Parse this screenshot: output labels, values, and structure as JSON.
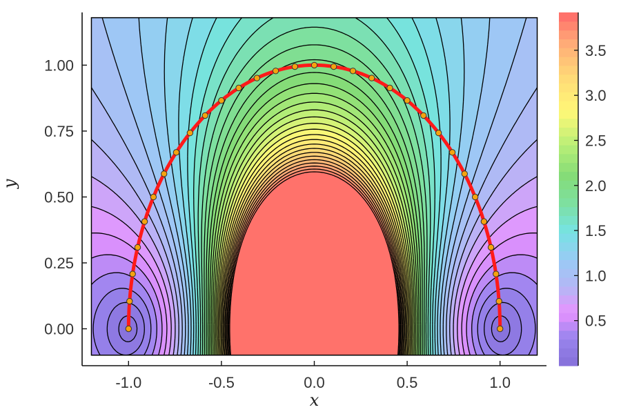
{
  "chart_data": {
    "type": "contour",
    "xlabel": "x",
    "ylabel": "y",
    "xlim": [
      -1.25,
      1.25
    ],
    "ylim": [
      -0.14,
      1.2
    ],
    "field_extent": {
      "x": [
        -1.2,
        1.2
      ],
      "y": [
        -0.1,
        1.18
      ]
    },
    "x_ticks": [
      -1.0,
      -0.5,
      0.0,
      0.5,
      1.0
    ],
    "x_tick_labels": [
      "-1.0",
      "-0.5",
      "0.0",
      "0.5",
      "1.0"
    ],
    "y_ticks": [
      0.0,
      0.25,
      0.5,
      0.75,
      1.0
    ],
    "y_tick_labels": [
      "0.00",
      "0.25",
      "0.50",
      "0.75",
      "1.00"
    ],
    "colorbar": {
      "range": [
        0.0,
        3.92
      ],
      "ticks": [
        0.5,
        1.0,
        1.5,
        2.0,
        2.5,
        3.0,
        3.5
      ],
      "tick_labels": [
        "0.5",
        "1.0",
        "1.5",
        "2.0",
        "2.5",
        "3.0",
        "3.5"
      ],
      "colormap": "rainbow",
      "opacity": 0.7
    },
    "contour_levels": 40,
    "colors": {
      "curve": "#ff1a1a",
      "marker_fill": "#f5a30f",
      "marker_edge": "#333333",
      "contour_line": "#000000"
    },
    "curve": {
      "name": "",
      "x": [
        -1.0,
        -0.9945,
        -0.9781,
        -0.9511,
        -0.9135,
        -0.866,
        -0.809,
        -0.7431,
        -0.6691,
        -0.5878,
        -0.5,
        -0.4067,
        -0.309,
        -0.2079,
        -0.1045,
        0.0,
        0.1045,
        0.2079,
        0.309,
        0.4067,
        0.5,
        0.5878,
        0.6691,
        0.7431,
        0.809,
        0.866,
        0.9135,
        0.9511,
        0.9781,
        0.9945,
        1.0
      ],
      "y": [
        0.0,
        0.1045,
        0.2079,
        0.309,
        0.4067,
        0.5,
        0.5878,
        0.6691,
        0.7431,
        0.809,
        0.866,
        0.9135,
        0.9511,
        0.9781,
        0.9945,
        1.0,
        0.9945,
        0.9781,
        0.9511,
        0.9135,
        0.866,
        0.809,
        0.7431,
        0.6691,
        0.5878,
        0.5,
        0.4067,
        0.309,
        0.2079,
        0.1045,
        0.0
      ]
    }
  }
}
